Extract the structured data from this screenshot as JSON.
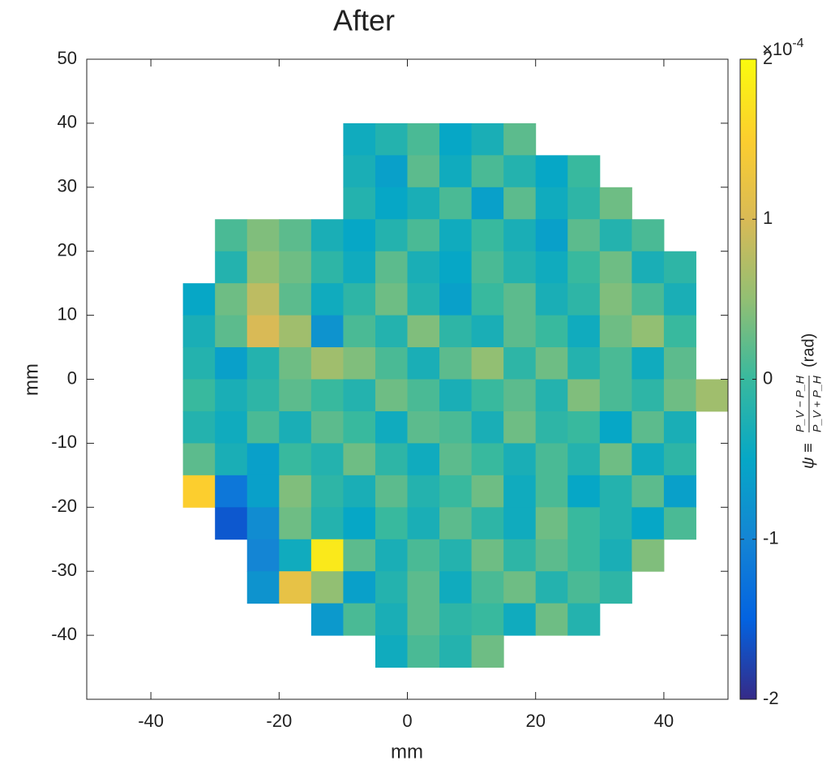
{
  "chart_data": {
    "type": "heatmap",
    "title": "After",
    "xlabel": "mm",
    "ylabel": "mm",
    "xlim": [
      -50,
      50
    ],
    "ylim": [
      -50,
      50
    ],
    "xticks": [
      -40,
      -20,
      0,
      20,
      40
    ],
    "yticks": [
      -40,
      -30,
      -20,
      -10,
      0,
      10,
      20,
      30,
      40,
      50
    ],
    "x": [
      -37.5,
      -32.5,
      -27.5,
      -22.5,
      -17.5,
      -12.5,
      -7.5,
      -2.5,
      2.5,
      7.5,
      12.5,
      17.5,
      22.5,
      27.5,
      32.5,
      37.5,
      42.5,
      47.5
    ],
    "y": [
      37.5,
      32.5,
      27.5,
      22.5,
      17.5,
      12.5,
      7.5,
      2.5,
      -2.5,
      -7.5,
      -12.5,
      -17.5,
      -22.5,
      -27.5,
      -32.5,
      -37.5,
      -42.5
    ],
    "z": [
      [
        null,
        null,
        null,
        null,
        null,
        null,
        -0.4,
        -0.2,
        0.1,
        -0.5,
        -0.3,
        0.2,
        null,
        null,
        null,
        null,
        null,
        null
      ],
      [
        null,
        null,
        null,
        null,
        null,
        null,
        -0.3,
        -0.6,
        0.2,
        -0.4,
        0.1,
        -0.2,
        -0.5,
        0.0,
        null,
        null,
        null,
        null
      ],
      [
        null,
        null,
        null,
        null,
        null,
        null,
        -0.2,
        -0.5,
        -0.3,
        0.1,
        -0.6,
        0.2,
        -0.4,
        -0.1,
        0.3,
        null,
        null,
        null
      ],
      [
        null,
        null,
        0.1,
        0.4,
        0.2,
        -0.3,
        -0.5,
        -0.2,
        0.1,
        -0.4,
        0.0,
        -0.3,
        -0.6,
        0.2,
        -0.2,
        0.1,
        null,
        null
      ],
      [
        null,
        null,
        -0.2,
        0.5,
        0.3,
        -0.1,
        -0.4,
        0.2,
        -0.3,
        -0.5,
        0.1,
        -0.2,
        -0.4,
        0.0,
        0.3,
        -0.3,
        -0.1,
        null
      ],
      [
        null,
        -0.5,
        0.3,
        0.8,
        0.2,
        -0.4,
        -0.1,
        0.3,
        -0.2,
        -0.6,
        0.0,
        0.2,
        -0.3,
        -0.1,
        0.4,
        0.1,
        -0.3,
        null
      ],
      [
        null,
        -0.3,
        0.2,
        1.0,
        0.6,
        -0.8,
        0.1,
        -0.2,
        0.4,
        -0.1,
        -0.3,
        0.2,
        0.0,
        -0.4,
        0.3,
        0.5,
        0.0,
        null
      ],
      [
        null,
        -0.2,
        -0.6,
        -0.2,
        0.3,
        0.6,
        0.4,
        0.1,
        -0.3,
        0.2,
        0.5,
        -0.1,
        0.3,
        -0.2,
        0.1,
        -0.4,
        0.2,
        null
      ],
      [
        null,
        0.0,
        -0.3,
        -0.1,
        0.2,
        0.0,
        -0.2,
        0.3,
        0.1,
        -0.3,
        0.0,
        0.2,
        -0.2,
        0.4,
        0.1,
        -0.1,
        0.3,
        0.6
      ],
      [
        null,
        -0.2,
        -0.4,
        0.1,
        -0.3,
        0.2,
        0.0,
        -0.4,
        0.2,
        0.1,
        -0.3,
        0.3,
        -0.1,
        0.0,
        -0.5,
        0.2,
        -0.3,
        null
      ],
      [
        null,
        0.2,
        -0.3,
        -0.6,
        0.0,
        -0.2,
        0.3,
        -0.1,
        -0.4,
        0.2,
        0.0,
        -0.3,
        0.1,
        -0.2,
        0.3,
        -0.4,
        -0.1,
        null
      ],
      [
        null,
        1.5,
        -1.2,
        -0.6,
        0.4,
        -0.1,
        -0.3,
        0.2,
        -0.2,
        0.0,
        0.3,
        -0.4,
        0.1,
        -0.5,
        -0.2,
        0.2,
        -0.6,
        null
      ],
      [
        null,
        null,
        -1.6,
        -0.9,
        0.3,
        -0.2,
        -0.5,
        0.0,
        -0.3,
        0.2,
        -0.1,
        -0.4,
        0.3,
        0.0,
        -0.2,
        -0.5,
        0.1,
        null
      ],
      [
        null,
        null,
        null,
        -1.0,
        -0.4,
        1.8,
        0.2,
        -0.3,
        0.1,
        -0.2,
        0.3,
        -0.1,
        0.2,
        0.0,
        -0.3,
        0.4,
        null,
        null
      ],
      [
        null,
        null,
        null,
        -0.8,
        1.2,
        0.5,
        -0.6,
        -0.2,
        0.2,
        -0.4,
        0.1,
        0.3,
        -0.2,
        0.1,
        -0.1,
        null,
        null,
        null
      ],
      [
        null,
        null,
        null,
        null,
        null,
        -0.7,
        0.1,
        -0.3,
        0.2,
        -0.1,
        0.0,
        -0.4,
        0.3,
        -0.2,
        null,
        null,
        null,
        null
      ],
      [
        null,
        null,
        null,
        null,
        null,
        null,
        null,
        -0.4,
        0.1,
        -0.2,
        0.3,
        null,
        null,
        null,
        null,
        null,
        null,
        null
      ]
    ],
    "colormap": [
      "#352a87",
      "#0363e1",
      "#1485d4",
      "#06a7c6",
      "#38b99e",
      "#92bf73",
      "#d9ba56",
      "#fcce2e",
      "#f9fb0e"
    ],
    "clim": [
      -2,
      2
    ],
    "cticks": [
      -2,
      -1,
      0,
      1,
      2
    ],
    "colorbar_scale": {
      "base": "×10",
      "exponent": "-4"
    },
    "colorbar_label": {
      "symbol": "ψ ≡",
      "numerator": "P_V − P_H",
      "denominator": "P_V + P_H",
      "unit": "(rad)"
    }
  }
}
